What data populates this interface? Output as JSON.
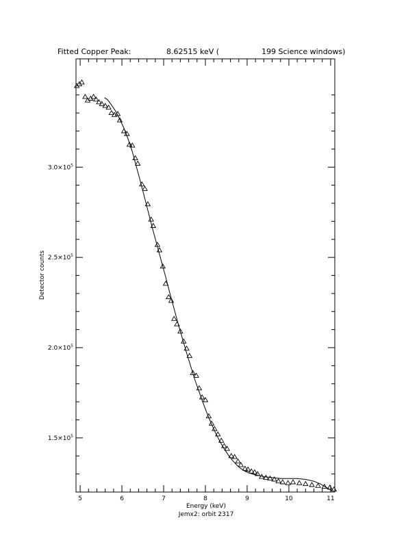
{
  "chart_data": {
    "type": "scatter",
    "title_parts": [
      "Fitted Copper Peak:",
      "8.62515 keV (",
      "199 Science windows)"
    ],
    "xlabel": "Energy (keV)",
    "subtitle": "Jemx2: orbit 2317",
    "ylabel": "Detector counts",
    "xlim": [
      4.9,
      11.1
    ],
    "ylim": [
      120000,
      360000
    ],
    "x_ticks": [
      5,
      6,
      7,
      8,
      9,
      10,
      11
    ],
    "x_tick_labels": [
      "5",
      "6",
      "7",
      "8",
      "9",
      "10",
      "11"
    ],
    "y_ticks": [
      {
        "value": 150000,
        "mant": "1.5×10",
        "exp": "5"
      },
      {
        "value": 200000,
        "mant": "2.0×10",
        "exp": "5"
      },
      {
        "value": 250000,
        "mant": "2.5×10",
        "exp": "5"
      },
      {
        "value": 300000,
        "mant": "3.0×10",
        "exp": "5"
      }
    ],
    "grid": false,
    "legend": "none",
    "series": [
      {
        "kind": "points",
        "marker": "open-triangle",
        "points": [
          [
            4.92,
            345000
          ],
          [
            4.98,
            346000
          ],
          [
            5.04,
            347000
          ],
          [
            5.12,
            339000
          ],
          [
            5.18,
            337000
          ],
          [
            5.25,
            338000
          ],
          [
            5.32,
            339000
          ],
          [
            5.38,
            337500
          ],
          [
            5.45,
            336000
          ],
          [
            5.52,
            335000
          ],
          [
            5.6,
            334000
          ],
          [
            5.68,
            333000
          ],
          [
            5.75,
            330000
          ],
          [
            5.82,
            329000
          ],
          [
            5.9,
            329500
          ],
          [
            5.95,
            326000
          ],
          [
            6.05,
            320000
          ],
          [
            6.12,
            318500
          ],
          [
            6.18,
            312500
          ],
          [
            6.25,
            312000
          ],
          [
            6.32,
            305000
          ],
          [
            6.38,
            302000
          ],
          [
            6.48,
            290500
          ],
          [
            6.55,
            288000
          ],
          [
            6.62,
            279500
          ],
          [
            6.7,
            271000
          ],
          [
            6.75,
            267500
          ],
          [
            6.85,
            257000
          ],
          [
            6.9,
            254000
          ],
          [
            6.98,
            245000
          ],
          [
            7.05,
            235500
          ],
          [
            7.12,
            228000
          ],
          [
            7.18,
            226000
          ],
          [
            7.25,
            216000
          ],
          [
            7.32,
            213000
          ],
          [
            7.4,
            209000
          ],
          [
            7.48,
            203500
          ],
          [
            7.55,
            199500
          ],
          [
            7.62,
            195500
          ],
          [
            7.7,
            186000
          ],
          [
            7.78,
            184500
          ],
          [
            7.85,
            177500
          ],
          [
            7.92,
            172500
          ],
          [
            8.0,
            171000
          ],
          [
            8.08,
            162000
          ],
          [
            8.15,
            158000
          ],
          [
            8.22,
            155000
          ],
          [
            8.3,
            152000
          ],
          [
            8.38,
            148500
          ],
          [
            8.45,
            145500
          ],
          [
            8.52,
            144000
          ],
          [
            8.62,
            140000
          ],
          [
            8.7,
            139500
          ],
          [
            8.78,
            137000
          ],
          [
            8.85,
            135000
          ],
          [
            8.95,
            133000
          ],
          [
            9.02,
            132500
          ],
          [
            9.1,
            131500
          ],
          [
            9.18,
            131000
          ],
          [
            9.25,
            130000
          ],
          [
            9.35,
            128500
          ],
          [
            9.45,
            128000
          ],
          [
            9.55,
            127500
          ],
          [
            9.65,
            127000
          ],
          [
            9.75,
            126000
          ],
          [
            9.85,
            125500
          ],
          [
            9.98,
            125000
          ],
          [
            10.1,
            125500
          ],
          [
            10.25,
            125000
          ],
          [
            10.4,
            124500
          ],
          [
            10.55,
            124000
          ],
          [
            10.7,
            123500
          ],
          [
            10.85,
            123000
          ],
          [
            10.98,
            122500
          ],
          [
            11.08,
            121500
          ]
        ]
      },
      {
        "kind": "fit-line",
        "points": [
          [
            5.58,
            338500
          ],
          [
            5.65,
            337500
          ],
          [
            5.75,
            334500
          ],
          [
            5.85,
            331000
          ],
          [
            5.95,
            326500
          ],
          [
            6.05,
            321500
          ],
          [
            6.15,
            315500
          ],
          [
            6.25,
            308500
          ],
          [
            6.35,
            300000
          ],
          [
            6.45,
            291500
          ],
          [
            6.55,
            282500
          ],
          [
            6.65,
            273500
          ],
          [
            6.75,
            264500
          ],
          [
            6.85,
            256000
          ],
          [
            6.95,
            247500
          ],
          [
            7.05,
            239000
          ],
          [
            7.15,
            230000
          ],
          [
            7.25,
            221500
          ],
          [
            7.35,
            213000
          ],
          [
            7.45,
            205000
          ],
          [
            7.55,
            197000
          ],
          [
            7.65,
            189500
          ],
          [
            7.75,
            182000
          ],
          [
            7.85,
            175500
          ],
          [
            7.95,
            169000
          ],
          [
            8.05,
            163000
          ],
          [
            8.15,
            157500
          ],
          [
            8.25,
            152500
          ],
          [
            8.35,
            148000
          ],
          [
            8.45,
            144000
          ],
          [
            8.55,
            140500
          ],
          [
            8.65,
            137500
          ],
          [
            8.75,
            135000
          ],
          [
            8.85,
            133000
          ],
          [
            8.95,
            131500
          ],
          [
            9.05,
            130500
          ],
          [
            9.2,
            129500
          ],
          [
            9.4,
            128500
          ],
          [
            9.6,
            128000
          ],
          [
            9.8,
            127500
          ],
          [
            10.0,
            127500
          ],
          [
            10.2,
            127500
          ],
          [
            10.4,
            127000
          ],
          [
            10.6,
            126000
          ],
          [
            10.75,
            124500
          ],
          [
            10.9,
            122500
          ],
          [
            11.05,
            120500
          ]
        ]
      }
    ]
  }
}
